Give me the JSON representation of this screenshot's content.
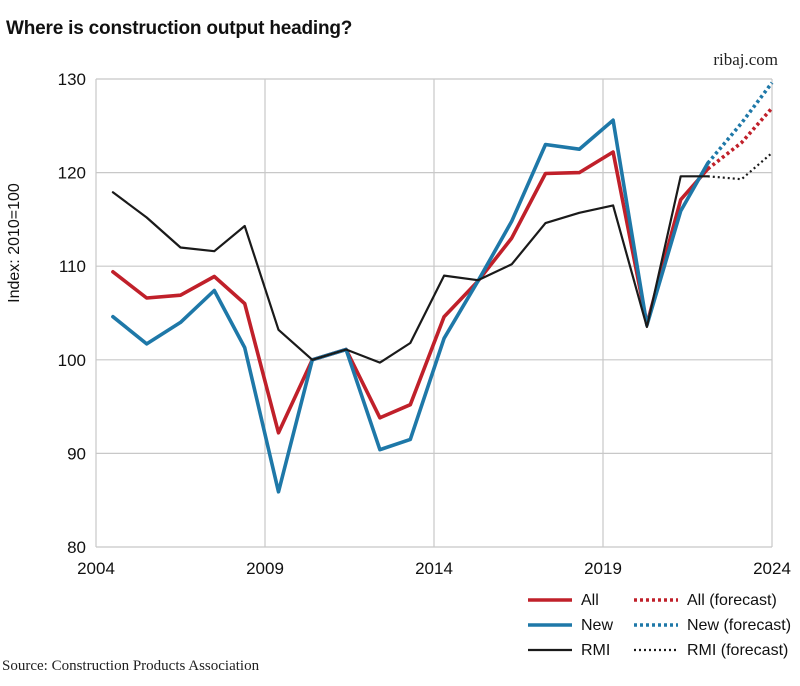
{
  "header": {
    "title": "Where is construction output heading?",
    "brand": "ribaj.com"
  },
  "footer": {
    "source": "Source: Construction Products Association"
  },
  "chart_data": {
    "type": "line",
    "title": "Where is construction output heading?",
    "ylabel": "Index: 2010=100",
    "xlabel": "",
    "xlim": [
      2004,
      2024
    ],
    "ylim": [
      80,
      130
    ],
    "x_ticks": [
      2004,
      2009,
      2014,
      2019,
      2024
    ],
    "y_ticks": [
      80,
      90,
      100,
      110,
      120,
      130
    ],
    "grid": true,
    "legend_position": "bottom-right",
    "colors": {
      "All": "#c0202a",
      "New": "#1e78a8",
      "RMI": "#1a1a1a"
    },
    "series": [
      {
        "name": "All",
        "x": [
          2004.5,
          2005.5,
          2006.5,
          2007.5,
          2008.4,
          2009.4,
          2010.4,
          2011.4,
          2012.4,
          2013.3,
          2014.3,
          2015.3,
          2016.3,
          2017.3,
          2018.3,
          2019.3,
          2020.3,
          2021.3,
          2022.1
        ],
        "y": [
          109.4,
          106.6,
          106.9,
          108.9,
          106.0,
          92.2,
          100.0,
          101.1,
          93.8,
          95.2,
          104.6,
          108.4,
          113.0,
          119.9,
          120.0,
          122.2,
          103.8,
          117.1,
          120.4
        ]
      },
      {
        "name": "All (forecast)",
        "x": [
          2022.1,
          2023.1,
          2024.0
        ],
        "y": [
          120.4,
          123.2,
          126.9
        ]
      },
      {
        "name": "New",
        "x": [
          2004.5,
          2005.5,
          2006.5,
          2007.5,
          2008.4,
          2009.4,
          2010.4,
          2011.4,
          2012.4,
          2013.3,
          2014.3,
          2015.3,
          2016.3,
          2017.3,
          2018.3,
          2019.3,
          2020.3,
          2021.3,
          2022.1
        ],
        "y": [
          104.6,
          101.7,
          104.0,
          107.4,
          101.3,
          85.9,
          100.0,
          101.1,
          90.4,
          91.5,
          102.3,
          108.4,
          114.8,
          123.0,
          122.5,
          125.6,
          103.7,
          115.9,
          121.0
        ]
      },
      {
        "name": "New (forecast)",
        "x": [
          2022.1,
          2023.1,
          2024.0
        ],
        "y": [
          121.0,
          125.3,
          129.6
        ]
      },
      {
        "name": "RMI",
        "x": [
          2004.5,
          2005.5,
          2006.5,
          2007.5,
          2008.4,
          2009.4,
          2010.4,
          2011.4,
          2012.4,
          2013.3,
          2014.3,
          2015.3,
          2016.3,
          2017.3,
          2018.3,
          2019.3,
          2020.3,
          2021.3,
          2022.1
        ],
        "y": [
          117.9,
          115.2,
          112.0,
          111.6,
          114.3,
          103.2,
          100.0,
          101.1,
          99.7,
          101.8,
          109.0,
          108.5,
          110.2,
          114.6,
          115.7,
          116.5,
          103.5,
          119.6,
          119.6
        ]
      },
      {
        "name": "RMI (forecast)",
        "x": [
          2022.1,
          2023.1,
          2024.0
        ],
        "y": [
          119.6,
          119.3,
          122.1
        ]
      }
    ]
  }
}
